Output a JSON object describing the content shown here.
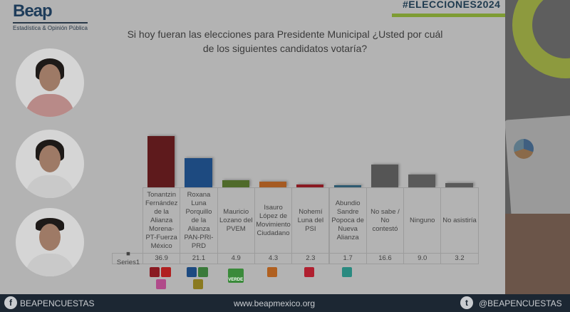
{
  "header": {
    "logo_text": "Beap",
    "logo_subtitle": "Estadística & Opinión Pública",
    "hashtag": "#ELECCIONES2024"
  },
  "title": "Si hoy fueran las elecciones para Presidente Municipal ¿Usted por cuál de los siguientes candidatos votaría?",
  "chart_data": {
    "type": "bar",
    "title": "Si hoy fueran las elecciones para Presidente Municipal ¿Usted por cuál de los siguientes candidatos votaría?",
    "categories": [
      "Tonantzin Fernández de la Alianza Morena-PT-Fuerza México",
      "Roxana Luna Porquillo de la Alianza PAN-PRI-PRD",
      "Mauricio Lozano del PVEM",
      "Isauro López de Movimiento Ciudadano",
      "Nohemí Luna del PSI",
      "Abundio Sandre Popoca de Nueva Alianza",
      "No sabe / No contestó",
      "Ninguno",
      "No asistiría"
    ],
    "series": [
      {
        "name": "Series1",
        "values": [
          36.9,
          21.1,
          4.9,
          4.3,
          2.3,
          1.7,
          16.6,
          9.0,
          3.2
        ]
      }
    ],
    "value_labels": [
      "36.9",
      "21.1",
      "4.9",
      "4.3",
      "2.3",
      "1.7",
      "16.6",
      "9.0",
      "3.2"
    ],
    "colors": [
      "#5e1a1c",
      "#1d4a80",
      "#4f6a2a",
      "#a55a22",
      "#8a1a22",
      "#2e5a70",
      "#555555",
      "#5a5a5a",
      "#5a5a5a"
    ],
    "legend": "data-table",
    "grid": false
  },
  "party_logos": [
    [
      "morena",
      "PT",
      "fuerza-mexico"
    ],
    [
      "PAN",
      "PRI",
      "PRD"
    ],
    [
      "VERDE"
    ],
    [
      "movimiento-ciudadano"
    ],
    [
      "PSI"
    ],
    [
      "nueva-alianza"
    ]
  ],
  "footer": {
    "facebook": "BEAPENCUESTAS",
    "website": "www.beapmexico.org",
    "twitter": "@BEAPENCUESTAS"
  }
}
